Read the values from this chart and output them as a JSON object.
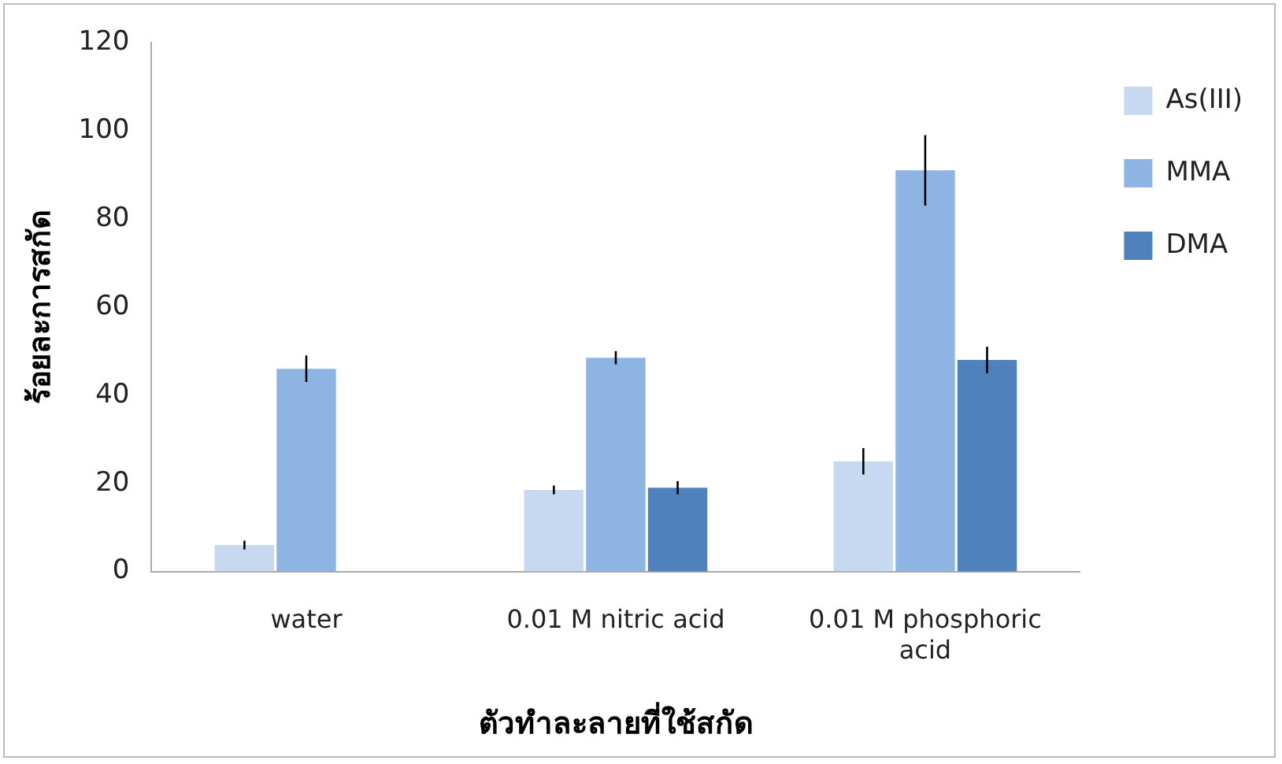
{
  "chart_data": {
    "type": "bar",
    "xlabel": "ตัวทำละลายที่ใช้สกัด",
    "ylabel": "ร้อยละการสกัด",
    "categories": [
      "water",
      "0.01 M nitric acid",
      "0.01 M phosphoric acid"
    ],
    "series": [
      {
        "name": "As(III)",
        "color": "#c6d9f1",
        "values": [
          6,
          18.5,
          25
        ],
        "errors": [
          1,
          1,
          3
        ]
      },
      {
        "name": "MMA",
        "color": "#8eb4e3",
        "values": [
          46,
          48.5,
          91
        ],
        "errors": [
          3,
          1.5,
          8
        ]
      },
      {
        "name": "DMA",
        "color": "#4f81bd",
        "values": [
          null,
          19,
          48
        ],
        "errors": [
          null,
          1.5,
          3
        ]
      }
    ],
    "ylim": [
      0,
      120
    ],
    "yticks": [
      0,
      20,
      40,
      60,
      80,
      100,
      120
    ],
    "grid": false,
    "legend": "right"
  }
}
